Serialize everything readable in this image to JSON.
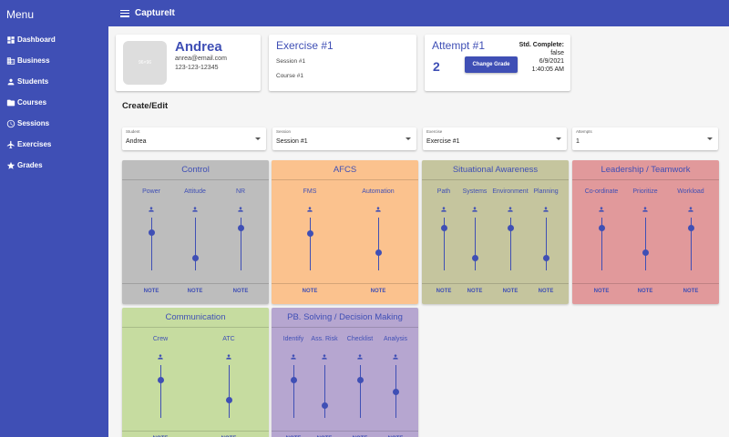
{
  "sidebar": {
    "title": "Menu",
    "items": [
      {
        "label": "Dashboard",
        "icon": "dashboard-icon"
      },
      {
        "label": "Business",
        "icon": "business-icon"
      },
      {
        "label": "Students",
        "icon": "person-icon"
      },
      {
        "label": "Courses",
        "icon": "courses-icon"
      },
      {
        "label": "Sessions",
        "icon": "sessions-icon"
      },
      {
        "label": "Exercises",
        "icon": "airplane-icon"
      },
      {
        "label": "Grades",
        "icon": "star-icon"
      }
    ]
  },
  "topbar": {
    "title": "CaptureIt"
  },
  "profile": {
    "avatar_text": "96×96",
    "name": "Andrea",
    "email": "anrea@email.com",
    "phone": "123-123-12345"
  },
  "exercise_card": {
    "title": "Exercise #1",
    "session": "Session #1",
    "course": "Course #1"
  },
  "attempt_card": {
    "title": "Attempt #1",
    "number": "2",
    "button_label": "Change Grade",
    "status_label": "Std. Complete:",
    "status_value": "false",
    "date": "6/9/2021",
    "time": "1:40:05 AM"
  },
  "section_title": "Create/Edit",
  "selects": [
    {
      "label": "Student",
      "value": "Andrea"
    },
    {
      "label": "Session",
      "value": "Session #1"
    },
    {
      "label": "Exercise",
      "value": "Exercise #1"
    },
    {
      "label": "Attempts",
      "value": "1"
    }
  ],
  "note_label": "NOTE",
  "panels": [
    {
      "title": "Control",
      "color": "#bdbdbd",
      "columns": [
        {
          "label": "Power",
          "level": 0.71
        },
        {
          "label": "Attitude",
          "level": 0.24
        },
        {
          "label": "NR",
          "level": 0.81
        }
      ]
    },
    {
      "title": "AFCS",
      "color": "#fbc28e",
      "columns": [
        {
          "label": "FMS",
          "level": 0.7
        },
        {
          "label": "Automation",
          "level": 0.33
        }
      ]
    },
    {
      "title": "Situational Awareness",
      "color": "#c5c59e",
      "columns": [
        {
          "label": "Path",
          "level": 0.81
        },
        {
          "label": "Systems",
          "level": 0.24
        },
        {
          "label": "Environment",
          "level": 0.81
        },
        {
          "label": "Planning",
          "level": 0.24
        }
      ]
    },
    {
      "title": "Leadership / Teamwork",
      "color": "#e1999b",
      "columns": [
        {
          "label": "Co-ordinate",
          "level": 0.81
        },
        {
          "label": "Prioritize",
          "level": 0.33
        },
        {
          "label": "Workload",
          "level": 0.81
        }
      ]
    },
    {
      "title": "Communication",
      "color": "#c6dca0",
      "columns": [
        {
          "label": "Crew",
          "level": 0.71
        },
        {
          "label": "ATC",
          "level": 0.33
        }
      ]
    },
    {
      "title": "PB. Solving / Decision Making",
      "color": "#b6a6d0",
      "columns": [
        {
          "label": "Identify",
          "level": 0.71
        },
        {
          "label": "Ass. Risk",
          "level": 0.24
        },
        {
          "label": "Checklist",
          "level": 0.71
        },
        {
          "label": "Analysis",
          "level": 0.5
        }
      ]
    }
  ]
}
